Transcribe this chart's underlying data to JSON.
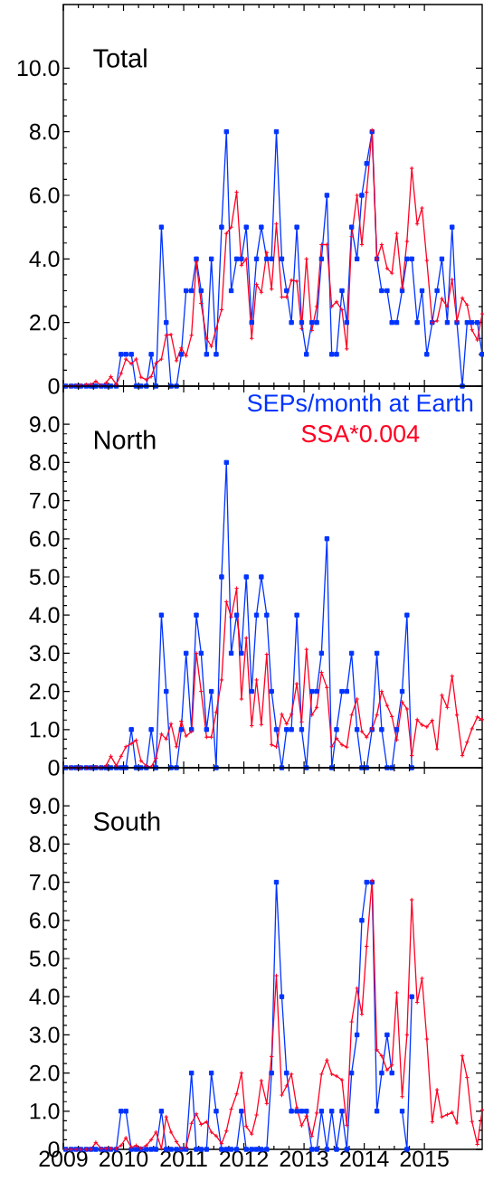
{
  "chart_data": [
    {
      "type": "line",
      "title": "Total",
      "xlim": [
        2009,
        2015.96
      ],
      "xticks": [
        2009,
        2010,
        2011,
        2012,
        2013,
        2014,
        2015
      ],
      "ylim": [
        0,
        12
      ],
      "yticks": [
        0,
        {
          "value": 2,
          "label": "2.0"
        },
        {
          "value": 4,
          "label": "4.0"
        },
        {
          "value": 6,
          "label": "6.0"
        },
        {
          "value": 8,
          "label": "8.0"
        },
        {
          "value": 10,
          "label": "10.0"
        }
      ],
      "tick_labels": "y",
      "x": [
        2009.04,
        2009.13,
        2009.21,
        2009.29,
        2009.38,
        2009.46,
        2009.54,
        2009.63,
        2009.71,
        2009.79,
        2009.88,
        2009.96,
        2010.04,
        2010.13,
        2010.21,
        2010.29,
        2010.38,
        2010.46,
        2010.54,
        2010.63,
        2010.71,
        2010.79,
        2010.88,
        2010.96,
        2011.04,
        2011.13,
        2011.21,
        2011.29,
        2011.38,
        2011.46,
        2011.54,
        2011.63,
        2011.71,
        2011.79,
        2011.88,
        2011.96,
        2012.04,
        2012.13,
        2012.21,
        2012.29,
        2012.38,
        2012.46,
        2012.54,
        2012.63,
        2012.71,
        2012.79,
        2012.88,
        2012.96,
        2013.04,
        2013.13,
        2013.21,
        2013.29,
        2013.38,
        2013.46,
        2013.54,
        2013.63,
        2013.71,
        2013.79,
        2013.88,
        2013.96,
        2014.04,
        2014.13,
        2014.21,
        2014.29,
        2014.38,
        2014.46,
        2014.54,
        2014.63,
        2014.71,
        2014.79,
        2014.88,
        2014.96,
        2015.04,
        2015.13,
        2015.21,
        2015.29,
        2015.38,
        2015.46,
        2015.54,
        2015.63,
        2015.71,
        2015.79,
        2015.88,
        2015.96
      ],
      "series": [
        {
          "color": "#0033ff",
          "marker": "square",
          "values": [
            0,
            0,
            0,
            0,
            0,
            0,
            0,
            0,
            0,
            0,
            0,
            1,
            1,
            1,
            0,
            0,
            0,
            1,
            0,
            5,
            2,
            0,
            0,
            1,
            3,
            3,
            4,
            3,
            1,
            4,
            1,
            5,
            8,
            3,
            4,
            4,
            5,
            2,
            4,
            5,
            4,
            4,
            8,
            4,
            3,
            2,
            5,
            2,
            1,
            2,
            2,
            4,
            6,
            1,
            1,
            3,
            2,
            5,
            4,
            6,
            7,
            8,
            4,
            3,
            3,
            2,
            2,
            3,
            4,
            4,
            2,
            3,
            1,
            2,
            3,
            4,
            2,
            5,
            2,
            0,
            2,
            2,
            2,
            1
          ]
        },
        {
          "color": "#ff0022",
          "marker": "cross",
          "values": [
            0,
            0,
            0.02,
            0.02,
            0.05,
            0.05,
            0.15,
            0.02,
            0.1,
            0.3,
            0.05,
            0.4,
            0.85,
            0.7,
            0.85,
            0.28,
            0.2,
            0.3,
            0.72,
            0.85,
            1.6,
            1.62,
            0.8,
            1.2,
            0.95,
            1.6,
            3.9,
            2.6,
            1.5,
            1.25,
            1.8,
            2.4,
            4.8,
            5.0,
            6.1,
            3.8,
            4.0,
            1.5,
            3.2,
            2.95,
            4.2,
            3.05,
            5.1,
            2.8,
            2.8,
            3.33,
            3.3,
            1.8,
            4.0,
            1.75,
            2.5,
            4.45,
            4.45,
            2.5,
            2.65,
            2.4,
            1.17,
            4.7,
            6.0,
            4.45,
            6.1,
            8.05,
            4.0,
            4.45,
            3.7,
            3.55,
            4.8,
            3.1,
            4.55,
            6.85,
            5.1,
            5.6,
            3.95,
            2.0,
            2.05,
            2.75,
            2.5,
            3.35,
            2.05,
            2.77,
            2.55,
            1.77,
            1.45,
            2.27
          ]
        }
      ]
    },
    {
      "type": "line",
      "title": "North",
      "xlim": [
        2009,
        2015.96
      ],
      "xticks": [
        2009,
        2010,
        2011,
        2012,
        2013,
        2014,
        2015
      ],
      "ylim": [
        0,
        10
      ],
      "yticks": [
        0,
        {
          "value": 1,
          "label": "1.0"
        },
        {
          "value": 2,
          "label": "2.0"
        },
        {
          "value": 3,
          "label": "3.0"
        },
        {
          "value": 4,
          "label": "4.0"
        },
        {
          "value": 5,
          "label": "5.0"
        },
        {
          "value": 6,
          "label": "6.0"
        },
        {
          "value": 7,
          "label": "7.0"
        },
        {
          "value": 8,
          "label": "8.0"
        },
        {
          "value": 9,
          "label": "9.0"
        }
      ],
      "tick_labels": "y",
      "legend": "top right",
      "x": [
        2009.04,
        2009.13,
        2009.21,
        2009.29,
        2009.38,
        2009.46,
        2009.54,
        2009.63,
        2009.71,
        2009.79,
        2009.88,
        2009.96,
        2010.04,
        2010.13,
        2010.21,
        2010.29,
        2010.38,
        2010.46,
        2010.54,
        2010.63,
        2010.71,
        2010.79,
        2010.88,
        2010.96,
        2011.04,
        2011.13,
        2011.21,
        2011.29,
        2011.38,
        2011.46,
        2011.54,
        2011.63,
        2011.71,
        2011.79,
        2011.88,
        2011.96,
        2012.04,
        2012.13,
        2012.21,
        2012.29,
        2012.38,
        2012.46,
        2012.54,
        2012.63,
        2012.71,
        2012.79,
        2012.88,
        2012.96,
        2013.04,
        2013.13,
        2013.21,
        2013.29,
        2013.38,
        2013.46,
        2013.54,
        2013.63,
        2013.71,
        2013.79,
        2013.88,
        2013.96,
        2014.04,
        2014.13,
        2014.21,
        2014.29,
        2014.38,
        2014.46,
        2014.54,
        2014.63,
        2014.71,
        2014.79,
        2014.88,
        2014.96,
        2015.04,
        2015.13,
        2015.21,
        2015.29,
        2015.38,
        2015.46,
        2015.54,
        2015.63,
        2015.71,
        2015.79,
        2015.88,
        2015.96
      ],
      "series": [
        {
          "name": "SEPs/month at Earth",
          "color": "#0033ff",
          "marker": "square",
          "values": [
            0,
            0,
            0,
            0,
            0,
            0,
            0,
            0,
            0,
            0,
            0,
            0,
            0,
            1,
            0,
            0,
            0,
            1,
            0,
            4,
            2,
            0,
            0,
            1,
            3,
            1,
            4,
            3,
            1,
            2,
            0,
            5,
            8,
            3,
            4,
            3,
            5,
            2,
            4,
            5,
            4,
            2,
            1,
            0,
            1,
            1,
            4,
            1,
            0,
            2,
            2,
            3,
            6,
            0,
            1,
            2,
            2,
            3,
            1,
            0,
            0,
            1,
            3,
            1,
            0,
            0,
            1,
            2,
            4,
            0,
            null,
            null,
            null,
            null,
            null,
            null,
            null,
            null,
            null,
            null,
            null,
            null,
            null,
            null
          ]
        },
        {
          "name": "SSA*0.004",
          "color": "#ff0022",
          "marker": "cross",
          "values": [
            0,
            0,
            0,
            0,
            0,
            0,
            0.02,
            0,
            0.05,
            0.3,
            0.05,
            0.3,
            0.55,
            0.63,
            0.72,
            0.18,
            0.05,
            0.02,
            0.25,
            0.88,
            0.75,
            1.15,
            0.55,
            1.22,
            0.83,
            0.95,
            3.0,
            2.0,
            0.8,
            0.8,
            1.45,
            2.3,
            4.35,
            3.95,
            4.7,
            1.8,
            3.4,
            1.1,
            2.3,
            1.13,
            2.97,
            0.6,
            0.55,
            1.4,
            1.15,
            1.4,
            2.2,
            1.2,
            3.1,
            1.38,
            1.58,
            2.5,
            2.1,
            0.55,
            0.77,
            0.6,
            0.54,
            1.38,
            1.8,
            0.95,
            0.8,
            1.02,
            1.38,
            2.0,
            1.63,
            1.34,
            0.73,
            1.72,
            1.54,
            0.32,
            1.26,
            1.12,
            1.07,
            1.24,
            0.49,
            1.9,
            1.58,
            2.4,
            1.38,
            0.32,
            0.67,
            1.02,
            1.33,
            1.26
          ]
        }
      ]
    },
    {
      "type": "line",
      "title": "South",
      "xlim": [
        2009,
        2015.96
      ],
      "xticks": [
        2009,
        2010,
        2011,
        2012,
        2013,
        2014,
        2015
      ],
      "ylim": [
        0,
        10
      ],
      "yticks": [
        0,
        {
          "value": 1,
          "label": "1.0"
        },
        {
          "value": 2,
          "label": "2.0"
        },
        {
          "value": 3,
          "label": "3.0"
        },
        {
          "value": 4,
          "label": "4.0"
        },
        {
          "value": 5,
          "label": "5.0"
        },
        {
          "value": 6,
          "label": "6.0"
        },
        {
          "value": 7,
          "label": "7.0"
        },
        {
          "value": 8,
          "label": "8.0"
        },
        {
          "value": 9,
          "label": "9.0"
        }
      ],
      "x": [
        2009.04,
        2009.13,
        2009.21,
        2009.29,
        2009.38,
        2009.46,
        2009.54,
        2009.63,
        2009.71,
        2009.79,
        2009.88,
        2009.96,
        2010.04,
        2010.13,
        2010.21,
        2010.29,
        2010.38,
        2010.46,
        2010.54,
        2010.63,
        2010.71,
        2010.79,
        2010.88,
        2010.96,
        2011.04,
        2011.13,
        2011.21,
        2011.29,
        2011.38,
        2011.46,
        2011.54,
        2011.63,
        2011.71,
        2011.79,
        2011.88,
        2011.96,
        2012.04,
        2012.13,
        2012.21,
        2012.29,
        2012.38,
        2012.46,
        2012.54,
        2012.63,
        2012.71,
        2012.79,
        2012.88,
        2012.96,
        2013.04,
        2013.13,
        2013.21,
        2013.29,
        2013.38,
        2013.46,
        2013.54,
        2013.63,
        2013.71,
        2013.79,
        2013.88,
        2013.96,
        2014.04,
        2014.13,
        2014.21,
        2014.29,
        2014.38,
        2014.46,
        2014.54,
        2014.63,
        2014.71,
        2014.79,
        2014.88,
        2014.96,
        2015.04,
        2015.13,
        2015.21,
        2015.29,
        2015.38,
        2015.46,
        2015.54,
        2015.63,
        2015.71,
        2015.79,
        2015.88,
        2015.96
      ],
      "series": [
        {
          "color": "#0033ff",
          "marker": "square",
          "values": [
            0,
            0,
            0,
            0,
            0,
            0,
            0,
            0,
            0,
            0,
            0,
            1,
            1,
            0,
            0,
            0,
            0,
            0,
            0,
            1,
            0,
            0,
            0,
            0,
            0,
            2,
            0,
            0,
            0,
            2,
            1,
            0,
            0,
            0,
            0,
            1,
            0,
            0,
            0,
            0,
            0,
            2,
            7,
            4,
            2,
            1,
            1,
            1,
            1,
            0,
            0,
            1,
            0,
            1,
            0,
            1,
            0,
            2,
            3,
            6,
            7,
            7,
            1,
            2,
            3,
            2,
            null,
            1,
            0,
            4,
            null,
            null,
            null,
            null,
            null,
            null,
            null,
            null,
            null,
            null,
            null,
            null,
            null,
            null
          ]
        },
        {
          "color": "#ff0022",
          "marker": "cross",
          "values": [
            0,
            0,
            0,
            0,
            0,
            0,
            0.18,
            0.02,
            0.02,
            0.02,
            0.02,
            0.1,
            0.3,
            0.05,
            0.1,
            0.03,
            0.1,
            0.25,
            0.45,
            0.02,
            0.85,
            0.45,
            0.2,
            0.02,
            0.05,
            0.68,
            0.93,
            0.65,
            0.72,
            0.45,
            0.35,
            0.15,
            0.48,
            1.05,
            1.45,
            2.0,
            0.6,
            0.4,
            0.9,
            1.8,
            1.2,
            2.43,
            4.55,
            1.42,
            1.66,
            1.97,
            1.09,
            0.62,
            0.87,
            0.34,
            0.95,
            1.97,
            2.34,
            1.97,
            1.92,
            1.82,
            0.63,
            3.34,
            4.22,
            3.54,
            5.32,
            7.04,
            2.61,
            2.45,
            2.08,
            2.21,
            4.1,
            1.38,
            3.0,
            6.54,
            3.85,
            4.48,
            2.89,
            0.72,
            1.56,
            0.85,
            0.91,
            0.97,
            0.69,
            2.45,
            1.88,
            0.73,
            0.13,
            1.03
          ]
        }
      ]
    }
  ]
}
